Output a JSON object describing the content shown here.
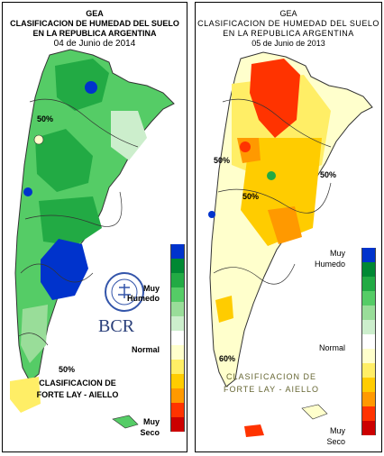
{
  "left": {
    "title1": "GEA",
    "title2": "CLASIFICACION DE HUMEDAD DEL SUELO",
    "title3": "EN LA REPUBLICA ARGENTINA",
    "date": "04 de Junio de 2014",
    "legend_top1": "Muy",
    "legend_top2": "Humedo",
    "legend_mid": "Normal",
    "legend_bot1": "Muy",
    "legend_bot2": "Seco",
    "class1": "CLASIFICACION DE",
    "class2": "FORTE LAY - AIELLO",
    "logo_text": "BCR",
    "seal_text": "BOLSA DE COMERCIO DE ROSARIO",
    "contour_a": "50%",
    "contour_b": "50%"
  },
  "right": {
    "title1": "GEA",
    "title2": "CLASIFICACION DE HUMEDAD DEL SUELO",
    "title3": "EN LA REPUBLICA ARGENTINA",
    "date": "05 de Junio de 2013",
    "legend_top1": "Muy",
    "legend_top2": "Humedo",
    "legend_mid": "Normal",
    "legend_bot1": "Muy",
    "legend_bot2": "Seco",
    "class1": "CLASIFICACION DE",
    "class2": "FORTE LAY - AIELLO",
    "contour_a": "50%",
    "contour_b": "50%",
    "contour_c": "50%",
    "contour_d": "60%"
  },
  "scale_colors": [
    "#0033cc",
    "#008833",
    "#22aa44",
    "#55cc66",
    "#99dd99",
    "#cceecc",
    "#ffffff",
    "#ffffcc",
    "#ffee66",
    "#ffcc00",
    "#ff9900",
    "#ff3300",
    "#cc0000"
  ]
}
